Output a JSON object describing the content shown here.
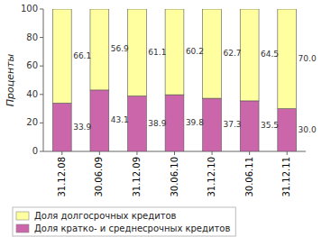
{
  "chart_data": {
    "type": "bar",
    "stacked": true,
    "categories": [
      "31.12.08",
      "30.06.09",
      "31.12.09",
      "30.06.10",
      "31.12.10",
      "30.06.11",
      "31.12.11"
    ],
    "series": [
      {
        "name": "Доля кратко- и среднесрочных кредитов",
        "color": "#cc66aa",
        "values": [
          33.9,
          43.1,
          38.9,
          39.8,
          37.3,
          35.5,
          30.0
        ],
        "value_labels": [
          "33.9",
          "43.1",
          "38.9",
          "39.8",
          "37.3",
          "35.5",
          "30.0"
        ]
      },
      {
        "name": "Доля долгосрочных кредитов",
        "color": "#ffffa0",
        "values": [
          66.1,
          56.9,
          61.1,
          60.2,
          62.7,
          64.5,
          70.0
        ],
        "value_labels": [
          "66.1",
          "56.9",
          "61.1",
          "60.2",
          "62.7",
          "64.5",
          "70.0"
        ]
      }
    ],
    "ylabel": "Проценты",
    "ylim": [
      0,
      100
    ],
    "yticks": [
      0,
      20,
      40,
      60,
      80,
      100
    ],
    "data_labels": true,
    "legend": "bottom"
  }
}
